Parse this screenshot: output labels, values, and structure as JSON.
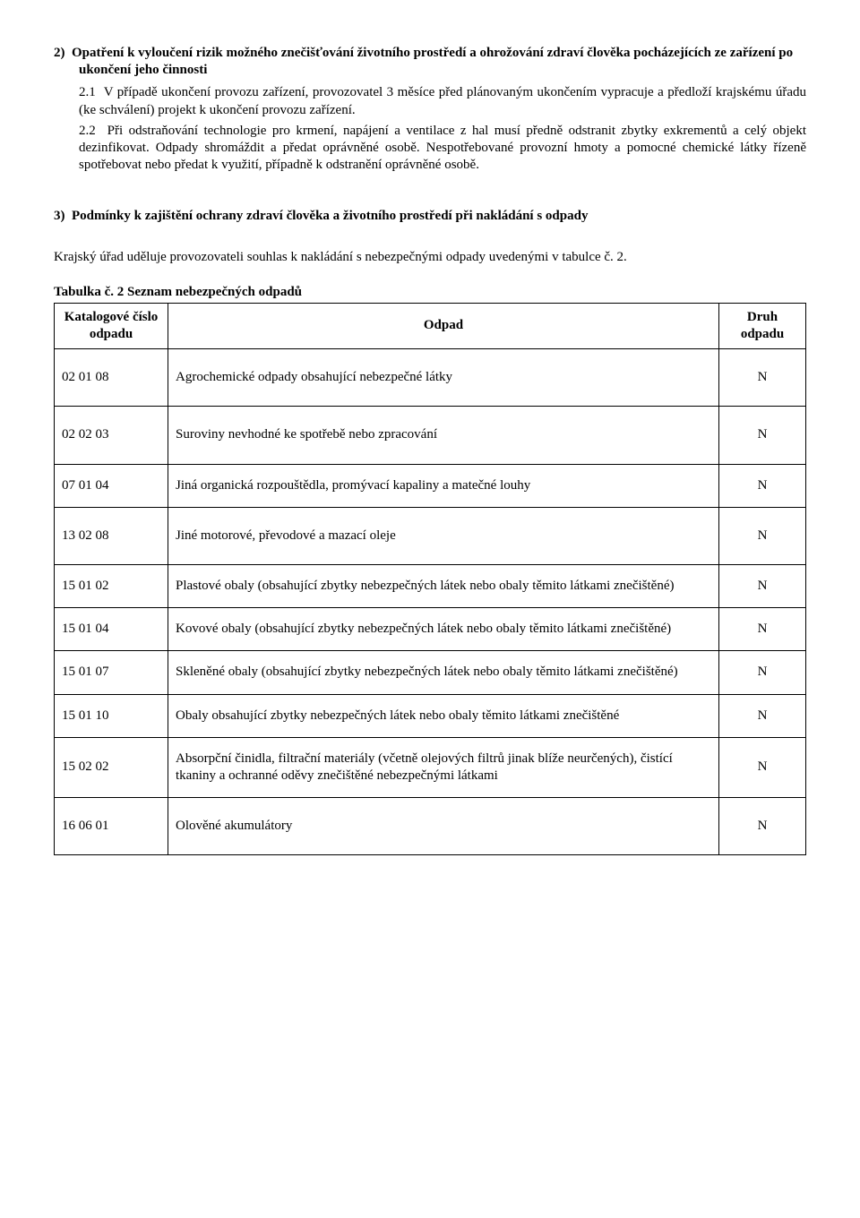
{
  "section2": {
    "heading_num": "2)",
    "heading_text": "Opatření k vyloučení rizik možného znečišťování životního prostředí a ohrožování zdraví člověka pocházejících ze zařízení po ukončení jeho činnosti",
    "p1_num": "2.1",
    "p1_text": "V případě ukončení provozu zařízení, provozovatel 3 měsíce před plánovaným ukončením vypracuje a předloží krajskému úřadu (ke schválení) projekt k ukončení provozu zařízení.",
    "p2_num": "2.2",
    "p2_text": "Při odstraňování technologie pro krmení, napájení a ventilace z hal musí předně odstranit zbytky exkrementů a celý objekt dezinfikovat. Odpady shromáždit a předat oprávněné osobě. Nespotřebované provozní hmoty a pomocné chemické látky řízeně spotřebovat nebo předat k využití, případně k odstranění oprávněné osobě."
  },
  "section3": {
    "heading_num": "3)",
    "heading_text": "Podmínky k zajištění ochrany zdraví člověka a životního prostředí při nakládání s odpady",
    "intro": "Krajský úřad uděluje provozovateli souhlas k nakládání s nebezpečnými odpady uvedenými v tabulce č. 2.",
    "table_caption": "Tabulka č. 2  Seznam nebezpečných odpadů",
    "headers": {
      "code": "Katalogové číslo odpadu",
      "name": "Odpad",
      "type": "Druh odpadu"
    },
    "rows": [
      {
        "code": "02 01 08",
        "name": "Agrochemické odpady obsahující nebezpečné látky",
        "type": "N"
      },
      {
        "code": "02 02 03",
        "name": "Suroviny nevhodné ke spotřebě nebo zpracování",
        "type": "N"
      },
      {
        "code": "07 01 04",
        "name": "Jiná organická rozpouštědla, promývací kapaliny a matečné louhy",
        "type": "N"
      },
      {
        "code": "13 02 08",
        "name": "Jiné motorové, převodové a mazací oleje",
        "type": "N"
      },
      {
        "code": "15 01 02",
        "name": "Plastové obaly (obsahující zbytky nebezpečných látek nebo obaly těmito látkami znečištěné)",
        "type": "N"
      },
      {
        "code": "15 01 04",
        "name": "Kovové obaly (obsahující zbytky nebezpečných látek nebo obaly těmito látkami znečištěné)",
        "type": "N"
      },
      {
        "code": "15 01 07",
        "name": "Skleněné obaly (obsahující zbytky nebezpečných látek nebo obaly těmito látkami znečištěné)",
        "type": "N"
      },
      {
        "code": "15 01 10",
        "name": "Obaly obsahující zbytky nebezpečných látek nebo obaly těmito látkami znečištěné",
        "type": "N"
      },
      {
        "code": "15 02 02",
        "name": "Absorpční činidla, filtrační materiály (včetně olejových filtrů jinak blíže neurčených), čistící tkaniny a ochranné oděvy znečištěné nebezpečnými látkami",
        "type": "N"
      },
      {
        "code": "16 06 01",
        "name": "Olověné akumulátory",
        "type": "N"
      }
    ]
  }
}
